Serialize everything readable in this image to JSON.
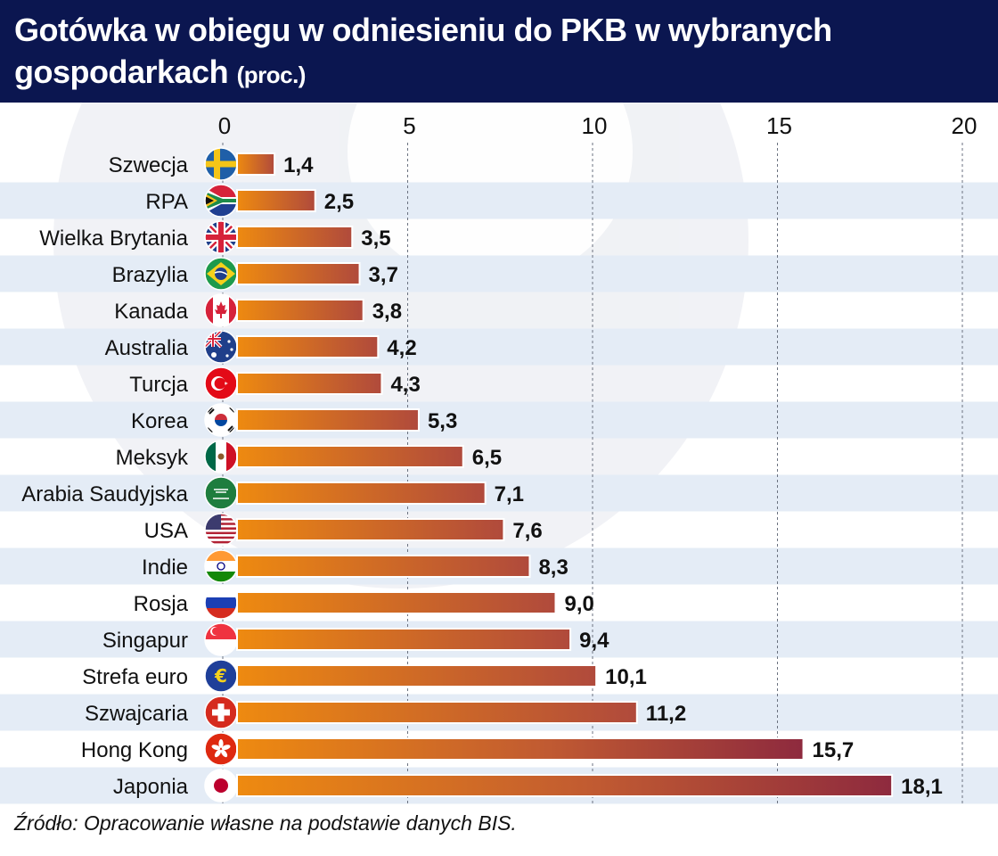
{
  "header": {
    "title": "Gotówka w obiegu w odniesieniu do PKB w wybranych gospodarkach",
    "unit": "(proc.)"
  },
  "colors": {
    "header_bg": "#0b1650",
    "band": "#e4ecf6",
    "bar_start": "#ee8a10",
    "bar_end": "#b04a3c",
    "bar_long_end": "#8e2a3e"
  },
  "chart_data": {
    "type": "bar",
    "orientation": "horizontal",
    "title": "Gotówka w obiegu w odniesieniu do PKB w wybranych gospodarkach (proc.)",
    "xlabel": "",
    "ylabel": "",
    "xlim": [
      0,
      20
    ],
    "xticks": [
      0,
      5,
      10,
      15,
      20
    ],
    "grid": true,
    "categories": [
      "Szwecja",
      "RPA",
      "Wielka Brytania",
      "Brazylia",
      "Kanada",
      "Australia",
      "Turcja",
      "Korea",
      "Meksyk",
      "Arabia Saudyjska",
      "USA",
      "Indie",
      "Rosja",
      "Singapur",
      "Strefa euro",
      "Szwajcaria",
      "Hong Kong",
      "Japonia"
    ],
    "values": [
      1.4,
      2.5,
      3.5,
      3.7,
      3.8,
      4.2,
      4.3,
      5.3,
      6.5,
      7.1,
      7.6,
      8.3,
      9.0,
      9.4,
      10.1,
      11.2,
      15.7,
      18.1
    ],
    "value_labels": [
      "1,4",
      "2,5",
      "3,5",
      "3,7",
      "3,8",
      "4,2",
      "4,3",
      "5,3",
      "6,5",
      "7,1",
      "7,6",
      "8,3",
      "9,0",
      "9,4",
      "10,1",
      "11,2",
      "15,7",
      "18,1"
    ],
    "flags": [
      "sweden-flag-icon",
      "south-africa-flag-icon",
      "uk-flag-icon",
      "brazil-flag-icon",
      "canada-flag-icon",
      "australia-flag-icon",
      "turkey-flag-icon",
      "korea-flag-icon",
      "mexico-flag-icon",
      "saudi-arabia-flag-icon",
      "usa-flag-icon",
      "india-flag-icon",
      "russia-flag-icon",
      "singapore-flag-icon",
      "eurozone-flag-icon",
      "switzerland-flag-icon",
      "hong-kong-flag-icon",
      "japan-flag-icon"
    ]
  },
  "footer": {
    "source": "Źródło: Opracowanie własne na podstawie danych BIS."
  }
}
